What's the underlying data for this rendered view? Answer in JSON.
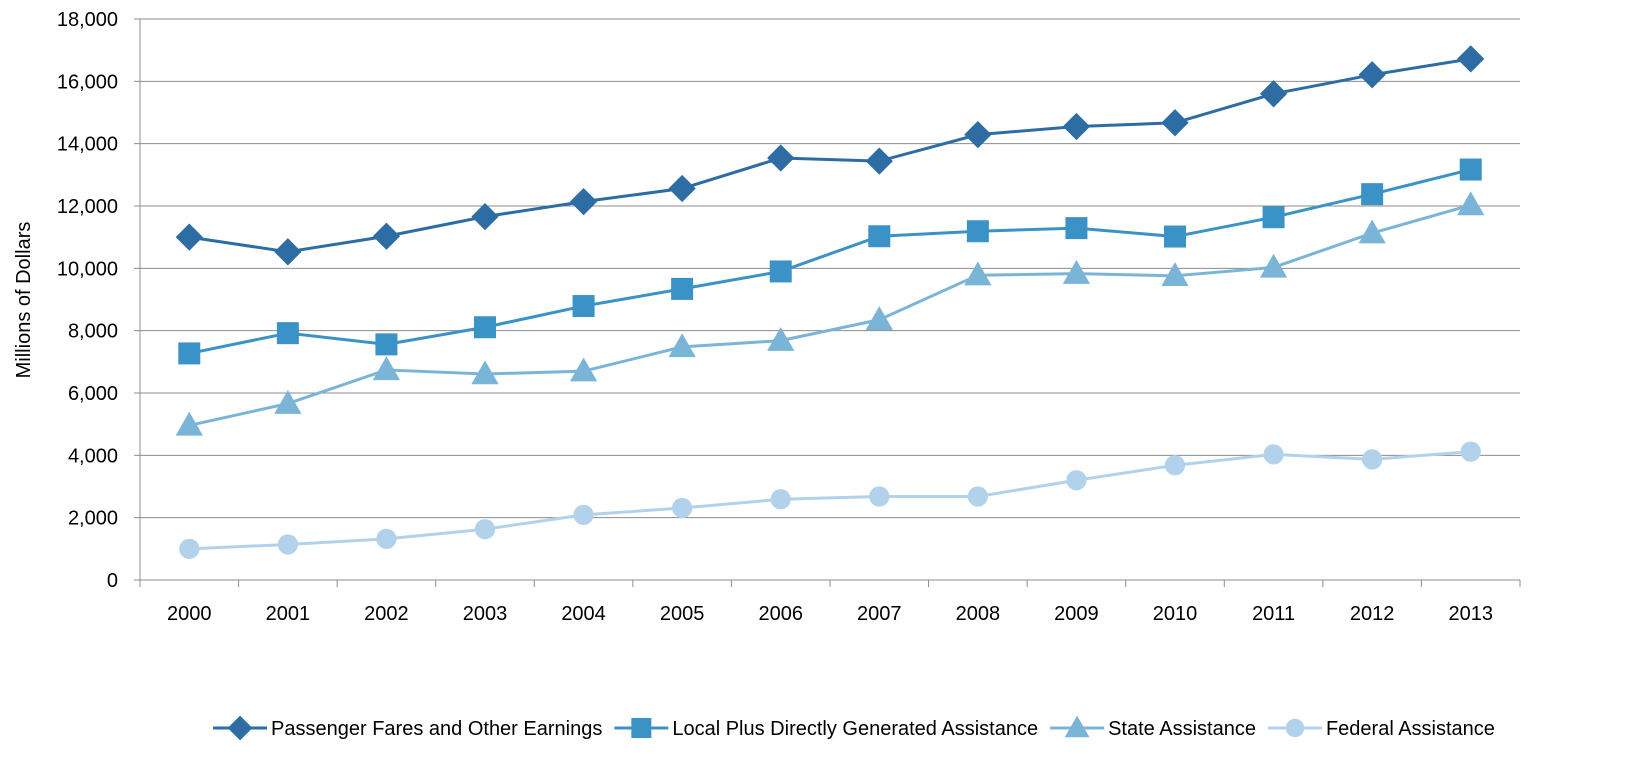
{
  "chart_data": {
    "type": "line",
    "title": "",
    "xlabel": "",
    "ylabel": "Millions of Dollars",
    "ylim": [
      0,
      18000
    ],
    "ytick_values": [
      0,
      2000,
      4000,
      6000,
      8000,
      10000,
      12000,
      14000,
      16000,
      18000
    ],
    "ytick_labels": [
      "0",
      "2,000",
      "4,000",
      "6,000",
      "8,000",
      "10,000",
      "12,000",
      "14,000",
      "16,000",
      "18,000"
    ],
    "categories": [
      "2000",
      "2001",
      "2002",
      "2003",
      "2004",
      "2005",
      "2006",
      "2007",
      "2008",
      "2009",
      "2010",
      "2011",
      "2012",
      "2013"
    ],
    "grid": "horizontal",
    "legend_position": "bottom",
    "series": [
      {
        "name": "Passenger Fares and Other Earnings",
        "marker": "diamond",
        "color": "#2E6DA4",
        "values": [
          11000,
          10530,
          11030,
          11660,
          12140,
          12560,
          13540,
          13440,
          14290,
          14550,
          14670,
          15600,
          16210,
          16720
        ]
      },
      {
        "name": "Local Plus Directly Generated Assistance",
        "marker": "square",
        "color": "#3A92C6",
        "values": [
          7270,
          7920,
          7560,
          8110,
          8790,
          9340,
          9900,
          11030,
          11190,
          11290,
          11020,
          11640,
          12380,
          13170
        ]
      },
      {
        "name": "State Assistance",
        "marker": "triangle",
        "color": "#7AB5D8",
        "values": [
          4960,
          5660,
          6740,
          6610,
          6700,
          7480,
          7680,
          8350,
          9780,
          9830,
          9760,
          10030,
          11130,
          12030
        ]
      },
      {
        "name": "Federal Assistance",
        "marker": "circle",
        "color": "#B2D2EC",
        "values": [
          1000,
          1140,
          1320,
          1630,
          2090,
          2310,
          2590,
          2680,
          2680,
          3200,
          3680,
          4030,
          3870,
          4120
        ]
      }
    ]
  }
}
